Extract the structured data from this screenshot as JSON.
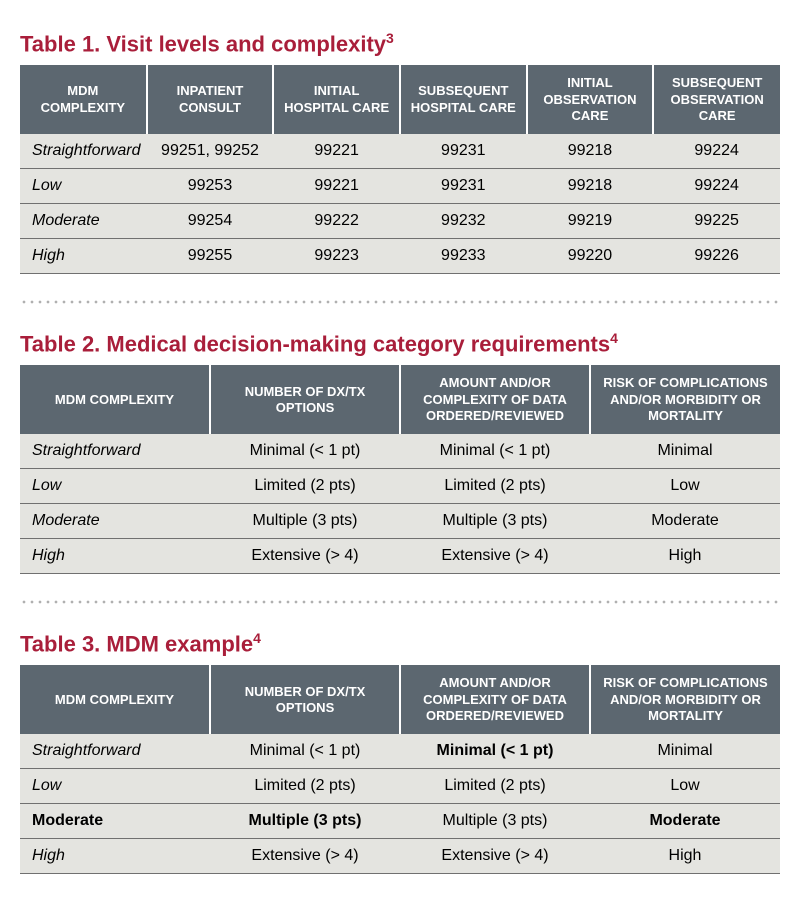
{
  "colors": {
    "title": "#a91e3a",
    "header_bg": "#5c6770",
    "header_fg": "#ffffff",
    "cell_bg": "#e4e4e0",
    "row_border": "#707070",
    "divider": "#b0b0b0"
  },
  "table1": {
    "title_prefix": "Table 1. Visit levels and complexity",
    "title_sup": "3",
    "headers": [
      "MDM COMPLEXITY",
      "INPATIENT CONSULT",
      "INITIAL HOSPITAL CARE",
      "SUBSEQUENT HOSPITAL CARE",
      "INITIAL OBSERVATION CARE",
      "SUBSEQUENT OBSERVATION CARE"
    ],
    "rows": [
      {
        "label": "Straightforward",
        "cells": [
          "99251, 99252",
          "99221",
          "99231",
          "99218",
          "99224"
        ]
      },
      {
        "label": "Low",
        "cells": [
          "99253",
          "99221",
          "99231",
          "99218",
          "99224"
        ]
      },
      {
        "label": "Moderate",
        "cells": [
          "99254",
          "99222",
          "99232",
          "99219",
          "99225"
        ]
      },
      {
        "label": "High",
        "cells": [
          "99255",
          "99223",
          "99233",
          "99220",
          "99226"
        ]
      }
    ]
  },
  "table2": {
    "title_prefix": "Table 2. Medical decision-making category requirements",
    "title_sup": "4",
    "headers": [
      "MDM COMPLEXITY",
      "NUMBER OF DX/TX OPTIONS",
      "AMOUNT AND/OR COMPLEXITY OF DATA ORDERED/REVIEWED",
      "RISK OF COMPLICATIONS AND/OR MORBIDITY OR MORTALITY"
    ],
    "rows": [
      {
        "label": "Straightforward",
        "cells": [
          "Minimal (< 1 pt)",
          "Minimal (< 1 pt)",
          "Minimal"
        ]
      },
      {
        "label": "Low",
        "cells": [
          "Limited (2 pts)",
          "Limited (2 pts)",
          "Low"
        ]
      },
      {
        "label": "Moderate",
        "cells": [
          "Multiple (3 pts)",
          "Multiple (3 pts)",
          "Moderate"
        ]
      },
      {
        "label": "High",
        "cells": [
          "Extensive (> 4)",
          "Extensive (> 4)",
          "High"
        ]
      }
    ]
  },
  "table3": {
    "title_prefix": "Table 3. MDM example",
    "title_sup": "4",
    "headers": [
      "MDM COMPLEXITY",
      "NUMBER OF DX/TX OPTIONS",
      "AMOUNT AND/OR COMPLEXITY OF DATA ORDERED/REVIEWED",
      "RISK OF COMPLICATIONS AND/OR MORBIDITY OR MORTALITY"
    ],
    "rows": [
      {
        "label": "Straightforward",
        "label_bold": false,
        "cells": [
          {
            "text": "Minimal (< 1 pt)",
            "bold": false
          },
          {
            "text": "Minimal (< 1 pt)",
            "bold": true
          },
          {
            "text": "Minimal",
            "bold": false
          }
        ]
      },
      {
        "label": "Low",
        "label_bold": false,
        "cells": [
          {
            "text": "Limited (2 pts)",
            "bold": false
          },
          {
            "text": "Limited (2 pts)",
            "bold": false
          },
          {
            "text": "Low",
            "bold": false
          }
        ]
      },
      {
        "label": "Moderate",
        "label_bold": true,
        "cells": [
          {
            "text": "Multiple (3 pts)",
            "bold": true
          },
          {
            "text": "Multiple (3 pts)",
            "bold": false
          },
          {
            "text": "Moderate",
            "bold": true
          }
        ]
      },
      {
        "label": "High",
        "label_bold": false,
        "cells": [
          {
            "text": "Extensive (> 4)",
            "bold": false
          },
          {
            "text": "Extensive (> 4)",
            "bold": false
          },
          {
            "text": "High",
            "bold": false
          }
        ]
      }
    ]
  }
}
